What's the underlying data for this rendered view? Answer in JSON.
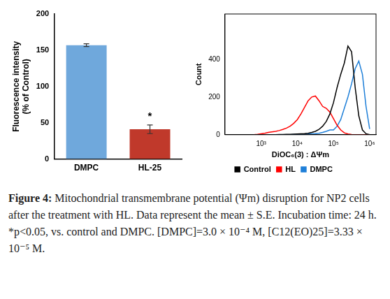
{
  "figure": {
    "label": "Figure 4:",
    "caption": "Mitochondrial transmembrane potential (Ψm) disruption for NP2 cells after the treatment with HL. Data represent the mean ± S.E. Incubation time: 24 h. *p<0.05, vs. control and DMPC. [DMPC]=3.0 × 10⁻⁴ M, [C12(EO)25]=3.33 × 10⁻⁵ M."
  },
  "chart_data": [
    {
      "type": "bar",
      "categories": [
        "DMPC",
        "HL-25"
      ],
      "values": [
        157,
        41
      ],
      "errors": [
        2,
        6
      ],
      "colors": [
        "#6fa8dc",
        "#c0392b"
      ],
      "y_label": [
        "Fluorescence intensity",
        "(% of Control)"
      ],
      "ylim": [
        0,
        200
      ],
      "yticks": [
        0,
        50,
        100,
        150,
        200
      ],
      "grid": false,
      "annotations": [
        {
          "category": "HL-25",
          "text": "*"
        }
      ]
    },
    {
      "type": "line",
      "log": "x",
      "x": [
        631,
        794,
        1000,
        1259,
        1585,
        1995,
        2512,
        3162,
        3981,
        5012,
        6310,
        7943,
        10000,
        12589,
        15849,
        19953,
        25119,
        31623,
        39811,
        50119,
        63096,
        79433,
        100000,
        125893,
        158489,
        199526,
        251189,
        316228,
        398107,
        501187,
        630957,
        794328,
        1000000
      ],
      "x_label": "DiOC₆(3) : ΔΨm",
      "y_label": "Count",
      "xlim": [
        100,
        1500000
      ],
      "xticks": [
        {
          "value": 1000,
          "label": "10³"
        },
        {
          "value": 10000,
          "label": "10⁴"
        },
        {
          "value": 100000,
          "label": "10⁵"
        },
        {
          "value": 1000000,
          "label": "10⁶"
        }
      ],
      "ylim": [
        0,
        640
      ],
      "yticks": [
        0,
        200,
        400
      ],
      "grid": false,
      "legend": "bottom",
      "series": [
        {
          "name": "Control",
          "color": "#000000",
          "values": [
            0,
            0,
            0,
            0,
            0,
            0,
            0,
            1,
            1,
            2,
            2,
            3,
            4,
            5,
            6,
            8,
            12,
            18,
            28,
            45,
            70,
            110,
            170,
            250,
            320,
            380,
            470,
            440,
            250,
            100,
            25,
            5,
            0
          ]
        },
        {
          "name": "HL",
          "color": "#ff0000",
          "values": [
            0,
            2,
            5,
            8,
            12,
            15,
            18,
            22,
            28,
            35,
            45,
            60,
            80,
            110,
            145,
            180,
            200,
            205,
            180,
            150,
            140,
            120,
            85,
            50,
            25,
            10,
            4,
            1,
            0,
            0,
            0,
            0,
            0
          ]
        },
        {
          "name": "DMPC",
          "color": "#1e7fd8",
          "values": [
            0,
            0,
            0,
            0,
            0,
            0,
            0,
            0,
            0,
            0,
            0,
            1,
            1,
            2,
            3,
            4,
            5,
            6,
            8,
            12,
            18,
            25,
            25,
            45,
            80,
            140,
            200,
            270,
            350,
            390,
            320,
            150,
            30
          ]
        }
      ]
    }
  ]
}
